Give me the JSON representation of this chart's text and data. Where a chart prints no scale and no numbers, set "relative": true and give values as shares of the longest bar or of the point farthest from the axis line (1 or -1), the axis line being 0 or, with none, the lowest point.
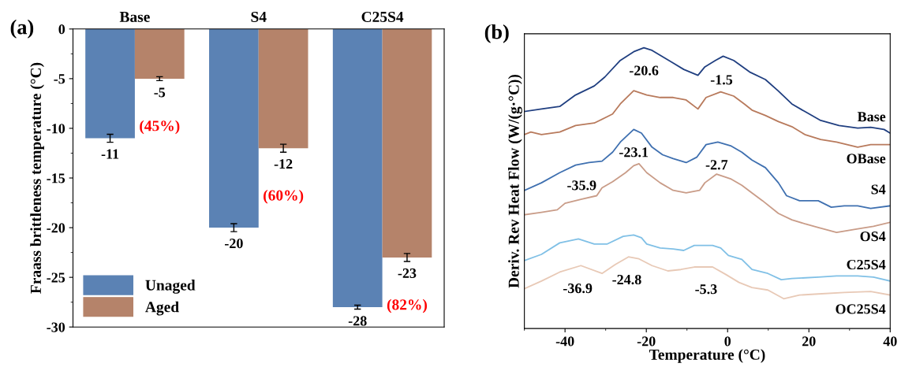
{
  "chart_data": [
    {
      "type": "bar",
      "categories": [
        "Base",
        "S4",
        "C25S4"
      ],
      "ylabel": "Fraass brittleness temperature (°C)",
      "series": [
        {
          "name": "Unaged",
          "color": "#5b82b4",
          "values": [
            -11,
            -20,
            -28
          ],
          "errors": [
            0.4,
            0.4,
            0.2
          ]
        },
        {
          "name": "Aged",
          "color": "#b5836a",
          "values": [
            -5,
            -12,
            -23
          ],
          "errors": [
            0.2,
            0.4,
            0.4
          ]
        }
      ],
      "ylim": [
        -30,
        0
      ],
      "yticks": [
        -30,
        -25,
        -20,
        -15,
        -10,
        -5,
        0
      ],
      "data_labels": true,
      "legend": "bottom left",
      "grid": false,
      "annotations": [
        "(a)",
        {
          "text": "(45%)",
          "x": "Base",
          "y": -5
        },
        {
          "text": "(60%)",
          "x": "S4",
          "y": -12
        },
        {
          "text": "(82%)",
          "x": "C25S4",
          "y": -23
        }
      ]
    },
    {
      "type": "line",
      "relative": true,
      "xlabel": "Temperature (°C)",
      "ylabel": "Deriv. Rev Heat Flow (W/(g·°C))",
      "xlim": [
        -50,
        40
      ],
      "xticks": [
        -40,
        -20,
        0,
        20,
        40
      ],
      "tick_labels": "x",
      "grid": false,
      "legend": false,
      "marker": "none",
      "line_style": "solid",
      "series": [
        {
          "name": "Base",
          "color": "#203f80",
          "x": [
            -50,
            -45.8,
            -41.3,
            -37.4,
            -32.8,
            -30.2,
            -26.4,
            -23.1,
            -20.6,
            -18.6,
            -16.0,
            -13.4,
            -10.8,
            -7.3,
            -5.6,
            -3.0,
            -1.1,
            1.5,
            5.4,
            9.3,
            12.5,
            15.8,
            19.0,
            22.9,
            27.4,
            32.0,
            35.2,
            38.5,
            40.0
          ],
          "values": [
            0.773,
            0.782,
            0.791,
            0.832,
            0.864,
            0.896,
            0.955,
            0.986,
            1.0,
            0.991,
            0.968,
            0.946,
            0.923,
            0.902,
            0.932,
            0.955,
            0.97,
            0.955,
            0.914,
            0.887,
            0.846,
            0.8,
            0.773,
            0.741,
            0.723,
            0.714,
            0.717,
            0.709,
            0.696
          ]
        },
        {
          "name": "OBase",
          "color": "#b87a5c",
          "x": [
            -50,
            -48.4,
            -45.8,
            -41.3,
            -37.4,
            -32.8,
            -28.3,
            -26.4,
            -23.1,
            -19.9,
            -16.6,
            -13.4,
            -10.2,
            -7.3,
            -5.3,
            -1.7,
            1.5,
            4.1,
            6.0,
            9.3,
            12.5,
            15.8,
            19.0,
            22.9,
            26.8,
            32.0,
            35.2,
            40.0
          ],
          "values": [
            0.691,
            0.7,
            0.691,
            0.7,
            0.723,
            0.732,
            0.764,
            0.8,
            0.847,
            0.832,
            0.823,
            0.823,
            0.814,
            0.782,
            0.823,
            0.843,
            0.828,
            0.8,
            0.778,
            0.759,
            0.737,
            0.719,
            0.691,
            0.673,
            0.664,
            0.646,
            0.655,
            0.655
          ]
        },
        {
          "name": "S4",
          "color": "#3f70b0",
          "x": [
            -50,
            -45.8,
            -41.3,
            -37.4,
            -34.1,
            -30.9,
            -28.3,
            -26.4,
            -23.1,
            -21.2,
            -18.6,
            -16.0,
            -13.4,
            -10.2,
            -7.6,
            -5.3,
            -2.4,
            0.9,
            3.5,
            6.0,
            9.3,
            12.5,
            14.5,
            17.7,
            22.3,
            25.5,
            28.7,
            32.0,
            35.2,
            40.0
          ],
          "values": [
            0.492,
            0.519,
            0.555,
            0.582,
            0.591,
            0.596,
            0.628,
            0.664,
            0.709,
            0.696,
            0.646,
            0.619,
            0.605,
            0.591,
            0.61,
            0.655,
            0.664,
            0.65,
            0.628,
            0.6,
            0.573,
            0.519,
            0.473,
            0.455,
            0.455,
            0.432,
            0.437,
            0.437,
            0.428,
            0.437
          ]
        },
        {
          "name": "OS4",
          "color": "#c99c88",
          "x": [
            -50,
            -45.8,
            -41.9,
            -40.0,
            -36.1,
            -32.2,
            -30.9,
            -28.3,
            -25.1,
            -23.1,
            -21.8,
            -19.9,
            -16.6,
            -13.4,
            -10.2,
            -6.9,
            -5.6,
            -2.7,
            0.9,
            3.5,
            6.0,
            8.6,
            12.5,
            15.8,
            19.0,
            22.3,
            26.8,
            32.0,
            35.9,
            40.0
          ],
          "values": [
            0.405,
            0.414,
            0.423,
            0.446,
            0.46,
            0.473,
            0.501,
            0.523,
            0.555,
            0.58,
            0.587,
            0.555,
            0.519,
            0.492,
            0.483,
            0.492,
            0.519,
            0.55,
            0.532,
            0.51,
            0.483,
            0.455,
            0.41,
            0.387,
            0.373,
            0.36,
            0.342,
            0.355,
            0.364,
            0.378
          ]
        },
        {
          "name": "C25S4",
          "color": "#80c0e6",
          "x": [
            -50,
            -45.8,
            -41.3,
            -36.7,
            -32.8,
            -29.6,
            -25.7,
            -23.1,
            -21.2,
            -19.9,
            -16.6,
            -13.4,
            -10.8,
            -8.2,
            -3.7,
            -1.7,
            0.2,
            3.5,
            6.0,
            9.9,
            13.2,
            15.8,
            22.3,
            26.8,
            32.0,
            35.9,
            40.0
          ],
          "values": [
            0.242,
            0.264,
            0.305,
            0.319,
            0.301,
            0.301,
            0.328,
            0.333,
            0.323,
            0.301,
            0.287,
            0.283,
            0.278,
            0.296,
            0.296,
            0.287,
            0.26,
            0.246,
            0.21,
            0.196,
            0.174,
            0.178,
            0.183,
            0.187,
            0.187,
            0.183,
            0.169
          ]
        },
        {
          "name": "OC25S4",
          "color": "#e8c9b6",
          "x": [
            -50,
            -45.8,
            -41.3,
            -36.1,
            -30.9,
            -27.6,
            -24.4,
            -21.8,
            -18.6,
            -14.7,
            -11.5,
            -8.2,
            -3.7,
            -0.4,
            2.8,
            6.0,
            9.9,
            13.8,
            17.7,
            22.3,
            28.7,
            35.2,
            40.0
          ],
          "values": [
            0.142,
            0.169,
            0.201,
            0.224,
            0.196,
            0.228,
            0.255,
            0.248,
            0.224,
            0.205,
            0.21,
            0.219,
            0.219,
            0.192,
            0.164,
            0.146,
            0.137,
            0.106,
            0.119,
            0.123,
            0.128,
            0.132,
            0.119
          ]
        }
      ],
      "annotations": [
        "(b)",
        {
          "text": "-20.6",
          "x": -20.6,
          "y": 1.0
        },
        {
          "text": "-1.5",
          "x": -1.5,
          "y": 0.967
        },
        {
          "text": "-23.1",
          "x": -23.1,
          "y": 0.709
        },
        {
          "text": "-2.7",
          "x": -2.7,
          "y": 0.664
        },
        {
          "text": "-35.9",
          "x": -35.9,
          "y": 0.591
        },
        {
          "text": "-36.9",
          "x": -36.9,
          "y": 0.224
        },
        {
          "text": "-24.8",
          "x": -24.8,
          "y": 0.255
        },
        {
          "text": "-5.3",
          "x": -5.3,
          "y": 0.221
        }
      ]
    }
  ]
}
